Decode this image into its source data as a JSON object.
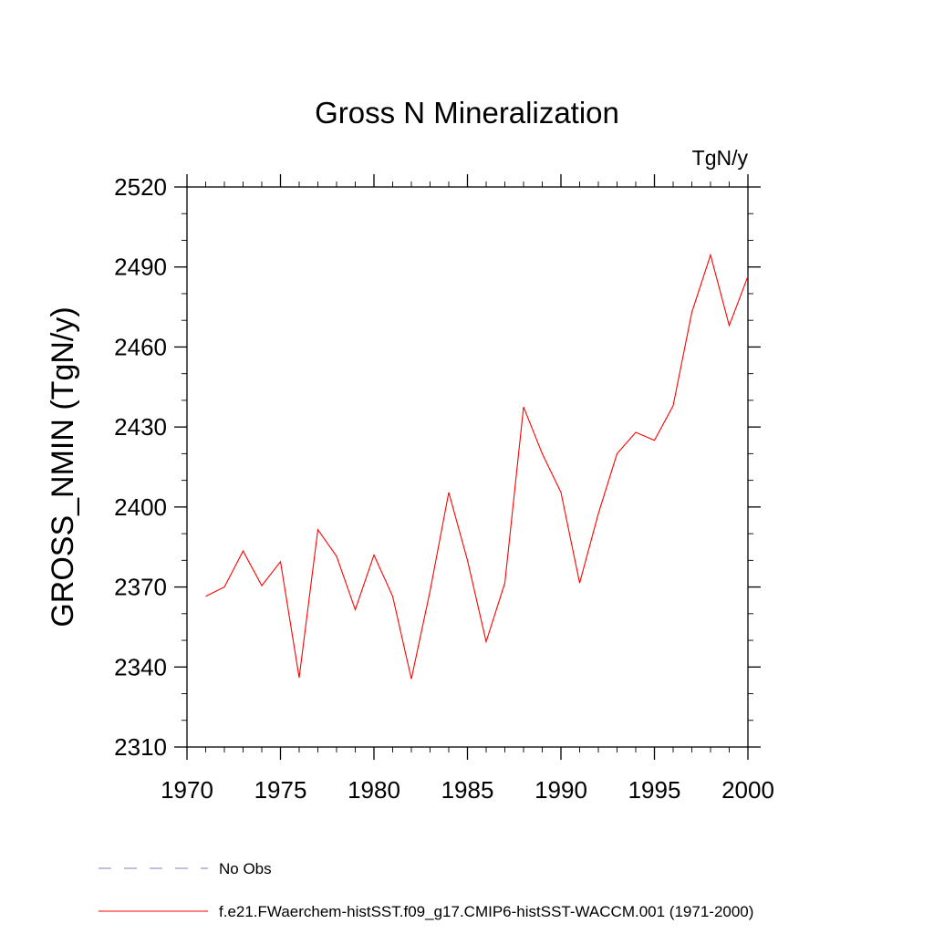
{
  "chart_data": {
    "type": "line",
    "title": "Gross N Mineralization",
    "units": "TgN/y",
    "xlabel": "",
    "ylabel": "GROSS_NMIN  (TgN/y)",
    "xlim": [
      1970,
      2000
    ],
    "ylim": [
      2310,
      2520
    ],
    "xticks": [
      1970,
      1975,
      1980,
      1985,
      1990,
      1995,
      2000
    ],
    "yticks": [
      2310,
      2340,
      2370,
      2400,
      2430,
      2460,
      2490,
      2520
    ],
    "grid": false,
    "legend_position": "bottom",
    "series": [
      {
        "name": "f.e21.FWaerchem-histSST.f09_g17.CMIP6-histSST-WACCM.001 (1971-2000)",
        "color": "#ff0000",
        "style": "solid",
        "x": [
          1971,
          1972,
          1973,
          1974,
          1975,
          1976,
          1977,
          1978,
          1979,
          1980,
          1981,
          1982,
          1983,
          1984,
          1985,
          1986,
          1987,
          1988,
          1989,
          1990,
          1991,
          1992,
          1993,
          1994,
          1995,
          1996,
          1997,
          1998,
          1999,
          2000
        ],
        "values": [
          2366.5,
          2370,
          2383.5,
          2370.5,
          2379.5,
          2336,
          2391.5,
          2381.5,
          2361.5,
          2382,
          2366.5,
          2335.5,
          2368.5,
          2405.5,
          2380,
          2349.5,
          2371.5,
          2437.5,
          2420,
          2405.5,
          2371.5,
          2397.5,
          2420,
          2428,
          2425,
          2438,
          2473,
          2494.5,
          2468,
          2486.5
        ]
      }
    ],
    "legend": [
      {
        "label": "No Obs",
        "color": "#7f7fcc",
        "style": "dashed"
      },
      {
        "label": "f.e21.FWaerchem-histSST.f09_g17.CMIP6-histSST-WACCM.001 (1971-2000)",
        "color": "#ff0000",
        "style": "solid"
      }
    ]
  }
}
